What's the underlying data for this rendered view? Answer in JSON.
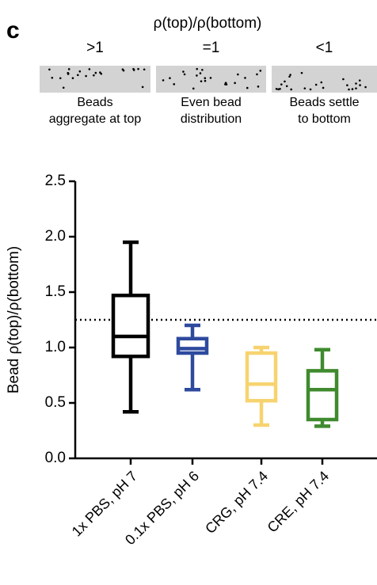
{
  "panel": "c",
  "schematic": {
    "header": "ρ(top)/ρ(bottom)",
    "panels": [
      {
        "ratio": ">1",
        "caption": [
          "Beads",
          "aggregate at top"
        ]
      },
      {
        "ratio": "=1",
        "caption": [
          "Even bead",
          "distribution"
        ]
      },
      {
        "ratio": "<1",
        "caption": [
          "Beads settle",
          "to bottom"
        ]
      }
    ]
  },
  "chart_data": {
    "type": "box",
    "y_label": "Bead ρ(top)/ρ(bottom)",
    "categories": [
      "1x PBS, pH 7",
      "0.1x PBS, pH 6",
      "CRG, pH 7.4",
      "CRE, pH 7.4"
    ],
    "colors": [
      "#000000",
      "#2e4a9e",
      "#f7d36f",
      "#3f8a2e"
    ],
    "stats": {
      "min": [
        0.42,
        0.62,
        0.3,
        0.29
      ],
      "q1": [
        0.92,
        0.95,
        0.52,
        0.35
      ],
      "median": [
        1.1,
        0.99,
        0.67,
        0.62
      ],
      "q3": [
        1.47,
        1.08,
        0.95,
        0.79
      ],
      "max": [
        1.95,
        1.2,
        1.0,
        0.98
      ]
    },
    "reference_line": 1.25,
    "ylim": [
      0,
      2.5
    ],
    "yticks": [
      {
        "value": 0,
        "label": "0.0"
      },
      0.5,
      {
        "value": 1,
        "label": "1.0"
      },
      1.5,
      {
        "value": 2,
        "label": "2.0"
      },
      2.5
    ]
  }
}
